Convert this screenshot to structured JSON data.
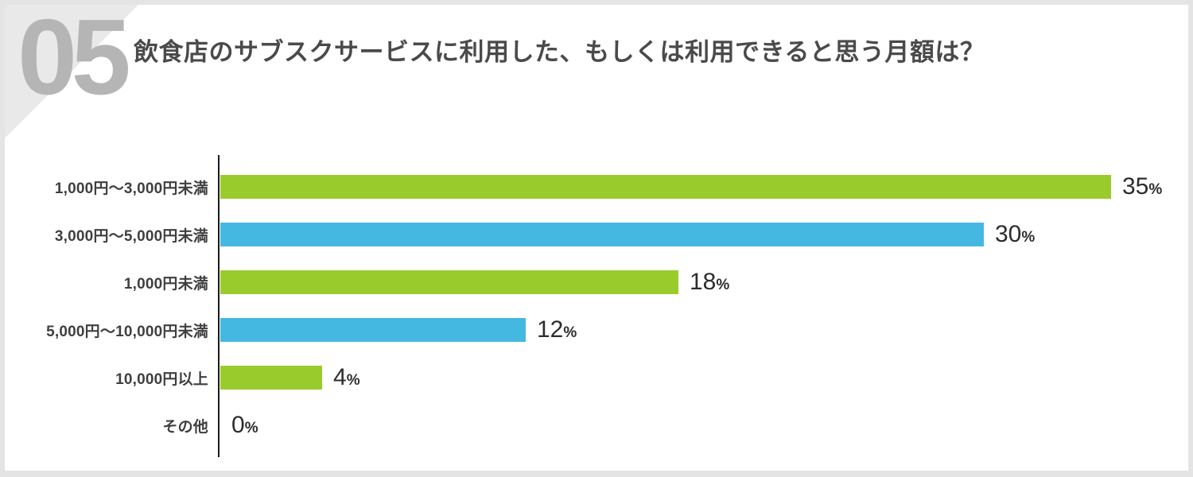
{
  "page": {
    "section_number": "05",
    "title": "飲食店のサブスクサービスに利用した、もしくは利用できると思う月額は？"
  },
  "colors": {
    "green": "#9acb2d",
    "blue": "#45b8e2",
    "number_gray": "#b5b5b5",
    "corner_gray": "#e9e9e9",
    "axis": "#1b1b1b"
  },
  "chart_data": {
    "type": "bar",
    "orientation": "horizontal",
    "title": "飲食店のサブスクサービスに利用した、もしくは利用できると思う月額は？",
    "categories": [
      "1,000円〜3,000円未満",
      "3,000円〜5,000円未満",
      "1,000円未満",
      "5,000円〜10,000円未満",
      "10,000円以上",
      "その他"
    ],
    "values": [
      35,
      30,
      18,
      12,
      4,
      0
    ],
    "unit": "%",
    "bar_colors": [
      "#9acb2d",
      "#45b8e2",
      "#9acb2d",
      "#45b8e2",
      "#9acb2d",
      "none"
    ],
    "xlim": [
      0,
      35
    ],
    "grid": false,
    "legend": "none"
  }
}
